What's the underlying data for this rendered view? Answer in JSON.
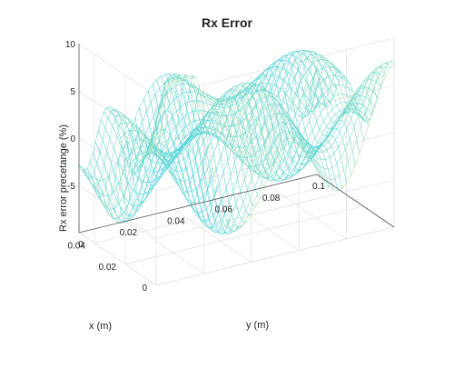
{
  "chart_data": {
    "type": "surface",
    "title": "Rx Error",
    "xlabel": "x (m)",
    "ylabel": "y (m)",
    "zlabel": "Rx error precetange (%)",
    "xlim": [
      0,
      0.05
    ],
    "ylim": [
      0,
      0.1
    ],
    "zlim": [
      -10,
      10
    ],
    "x_ticks": [
      "0",
      "0.02",
      "0.04"
    ],
    "y_ticks": [
      "0",
      "0.02",
      "0.04",
      "0.06",
      "0.08",
      "0.1"
    ],
    "z_ticks": [
      "-5",
      "0",
      "5",
      "10"
    ],
    "x_tick_values": [
      0,
      0.02,
      0.04
    ],
    "y_tick_values": [
      0,
      0.02,
      0.04,
      0.06,
      0.08,
      0.1
    ],
    "z_tick_values": [
      -5,
      0,
      5,
      10
    ],
    "grid": true,
    "style": "mesh",
    "colormap": [
      "#2ec9ea",
      "#6fd9c8",
      "#f2e58a"
    ],
    "surface_features": [
      {
        "x": 0.0,
        "y": 0.012,
        "z": 11,
        "description": "peak"
      },
      {
        "x": 0.05,
        "y": 0.1,
        "z": 5,
        "description": "spike"
      },
      {
        "x": 0.0,
        "y": 0.055,
        "z": 7,
        "description": "ridge"
      },
      {
        "x": 0.042,
        "y": 0.012,
        "z": -4,
        "description": "trough"
      }
    ]
  }
}
